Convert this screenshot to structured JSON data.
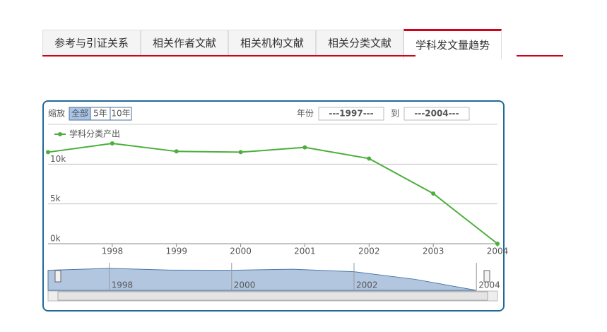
{
  "tabs": [
    "参考与引证关系",
    "相关作者文献",
    "相关机构文献",
    "相关分类文献",
    "学科发文量趋势"
  ],
  "active_tab": 4,
  "zoom": {
    "label": "缩放",
    "buttons": [
      "全部",
      "5年",
      "10年"
    ],
    "active": 0
  },
  "range": {
    "label": "年份",
    "from": "---1997---",
    "to_label": "到",
    "to": "---2004---"
  },
  "chart_data": {
    "type": "line",
    "x": [
      1997,
      1998,
      1999,
      2000,
      2001,
      2002,
      2003,
      2004
    ],
    "series": [
      {
        "name": "学科分类产出",
        "color": "#4cae3c",
        "values": [
          11500,
          12600,
          11600,
          11500,
          12100,
          10700,
          6300,
          0
        ]
      }
    ],
    "xlim": [
      1997,
      2004
    ],
    "xticks": [
      1998,
      1999,
      2000,
      2001,
      2002,
      2003,
      2004
    ],
    "ylim": [
      0,
      15000
    ],
    "yticks": [
      {
        "value": 0,
        "label": "0k"
      },
      {
        "value": 5000,
        "label": "5k"
      },
      {
        "value": 10000,
        "label": "10k"
      }
    ],
    "grid": true,
    "navigator_xticks": [
      1998,
      2000,
      2002,
      2004
    ]
  }
}
